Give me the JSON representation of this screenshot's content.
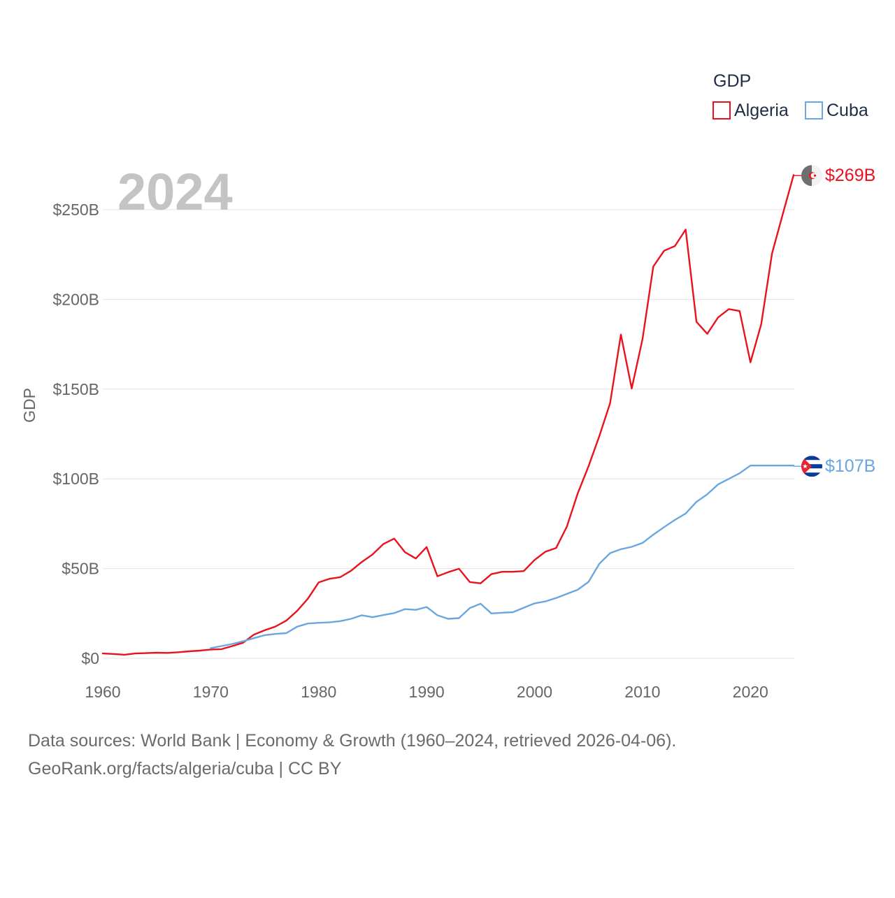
{
  "chart_data": {
    "type": "line",
    "title": "",
    "year_label": "2024",
    "xlabel": "",
    "ylabel": "GDP",
    "legend_title": "GDP",
    "legend_position": "top-right",
    "xlim": [
      1960,
      2024
    ],
    "ylim": [
      0,
      250
    ],
    "x_ticks": [
      1960,
      1970,
      1980,
      1990,
      2000,
      2010,
      2020
    ],
    "y_ticks": [
      {
        "value": 0,
        "label": "$0"
      },
      {
        "value": 50,
        "label": "$50B"
      },
      {
        "value": 100,
        "label": "$100B"
      },
      {
        "value": 150,
        "label": "$150B"
      },
      {
        "value": 200,
        "label": "$200B"
      },
      {
        "value": 250,
        "label": "$250B"
      }
    ],
    "grid": true,
    "series": [
      {
        "name": "Algeria",
        "key": "algeria",
        "color": "#e8131f",
        "end_label": "$269B",
        "end_value": 269,
        "flag_icon": "algeria-flag-icon",
        "x": [
          1960,
          1961,
          1962,
          1963,
          1964,
          1965,
          1966,
          1967,
          1968,
          1969,
          1970,
          1971,
          1972,
          1973,
          1974,
          1975,
          1976,
          1977,
          1978,
          1979,
          1980,
          1981,
          1982,
          1983,
          1984,
          1985,
          1986,
          1987,
          1988,
          1989,
          1990,
          1991,
          1992,
          1993,
          1994,
          1995,
          1996,
          1997,
          1998,
          1999,
          2000,
          2001,
          2002,
          2003,
          2004,
          2005,
          2006,
          2007,
          2008,
          2009,
          2010,
          2011,
          2012,
          2013,
          2014,
          2015,
          2016,
          2017,
          2018,
          2019,
          2020,
          2021,
          2022,
          2023,
          2024
        ],
        "values": [
          2.7,
          2.4,
          2.0,
          2.7,
          2.9,
          3.1,
          3.0,
          3.4,
          3.9,
          4.3,
          4.9,
          5.1,
          6.8,
          8.7,
          13.2,
          15.6,
          17.7,
          21.0,
          26.4,
          33.2,
          42.3,
          44.3,
          45.2,
          48.8,
          53.7,
          57.9,
          63.7,
          66.7,
          59.1,
          55.6,
          62.0,
          45.7,
          48.0,
          49.9,
          42.5,
          41.8,
          46.9,
          48.2,
          48.2,
          48.6,
          54.8,
          59.4,
          61.5,
          73.5,
          91.9,
          107.0,
          123.8,
          142.2,
          180.4,
          150.3,
          177.8,
          218.3,
          227.1,
          229.7,
          238.9,
          187.5,
          180.8,
          189.9,
          194.6,
          193.5,
          164.9,
          186.2,
          225.6,
          247.6,
          269.3
        ]
      },
      {
        "name": "Cuba",
        "key": "cuba",
        "color": "#6aa7e0",
        "end_label": "$107B",
        "end_value": 107,
        "flag_icon": "cuba-flag-icon",
        "x": [
          1970,
          1971,
          1972,
          1973,
          1974,
          1975,
          1976,
          1977,
          1978,
          1979,
          1980,
          1981,
          1982,
          1983,
          1984,
          1985,
          1986,
          1987,
          1988,
          1989,
          1990,
          1991,
          1992,
          1993,
          1994,
          1995,
          1996,
          1997,
          1998,
          1999,
          2000,
          2001,
          2002,
          2003,
          2004,
          2005,
          2006,
          2007,
          2008,
          2009,
          2010,
          2011,
          2012,
          2013,
          2014,
          2015,
          2016,
          2017,
          2018,
          2019,
          2020,
          2021,
          2022,
          2023,
          2024
        ],
        "values": [
          5.7,
          6.8,
          8.0,
          9.5,
          11.2,
          12.9,
          13.6,
          14.0,
          17.6,
          19.4,
          19.8,
          20.0,
          20.7,
          22.0,
          24.0,
          22.9,
          24.1,
          25.2,
          27.4,
          27.0,
          28.6,
          24.0,
          22.0,
          22.4,
          28.0,
          30.4,
          25.0,
          25.4,
          25.7,
          28.2,
          30.6,
          31.7,
          33.6,
          35.9,
          38.2,
          42.6,
          52.7,
          58.6,
          60.8,
          62.1,
          64.3,
          68.9,
          73.1,
          77.1,
          80.7,
          87.2,
          91.4,
          96.9,
          100.0,
          103.1,
          107.4,
          107.4,
          107.4,
          107.4,
          107.4
        ]
      }
    ]
  },
  "footer": {
    "line1": "Data sources: World Bank | Economy & Growth (1960–2024, retrieved 2026-04-06).",
    "line2": "GeoRank.org/facts/algeria/cuba | CC BY"
  }
}
